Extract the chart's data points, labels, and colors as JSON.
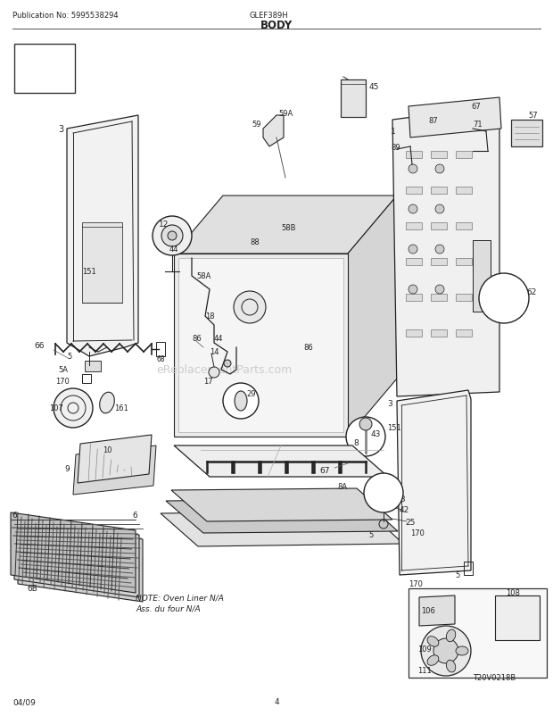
{
  "title": "BODY",
  "pub_no": "Publication No: 5995538294",
  "model": "GLEF389H",
  "date": "04/09",
  "page": "4",
  "diagram_code": "T20V0218B",
  "note_line1": "NOTE: Oven Liner N/A",
  "note_line2": "Ass. du four N/A",
  "bg_color": "#ffffff",
  "line_color": "#222222",
  "watermark": "eReplacementParts.com",
  "watermark_color": "#cccccc"
}
